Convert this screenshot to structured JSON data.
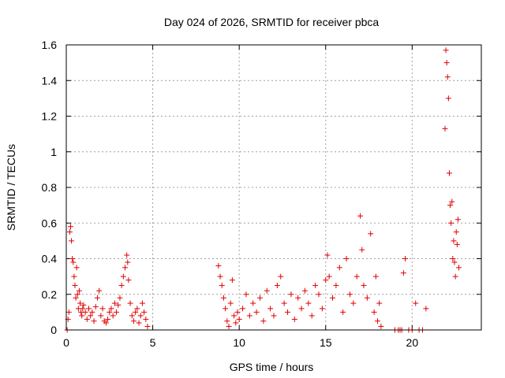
{
  "chart_data": {
    "type": "scatter",
    "title": "Day 024 of 2026, SRMTID for receiver pbca",
    "xlabel": "GPS time / hours",
    "ylabel": "SRMTID / TECUs",
    "xlim": [
      0,
      24
    ],
    "ylim": [
      0,
      1.6
    ],
    "xticks": [
      0,
      5,
      10,
      15,
      20
    ],
    "xtick_labels": [
      "0",
      "5",
      "10",
      "15",
      "20"
    ],
    "yticks": [
      0,
      0.2,
      0.4,
      0.6,
      0.8,
      1,
      1.2,
      1.4,
      1.6
    ],
    "ytick_labels": [
      "0",
      "0.2",
      "0.4",
      "0.6",
      "0.8",
      "1",
      "1.2",
      "1.4",
      "1.6"
    ],
    "grid": true,
    "marker": "+",
    "color": "#e00000",
    "series": [
      {
        "name": "SRMTID",
        "x": [
          0.05,
          0.1,
          0.15,
          0.2,
          0.25,
          0.3,
          0.35,
          0.4,
          0.45,
          0.5,
          0.55,
          0.6,
          0.65,
          0.7,
          0.75,
          0.8,
          0.85,
          0.9,
          0.95,
          1.0,
          1.1,
          1.2,
          1.3,
          1.4,
          1.5,
          1.6,
          1.7,
          1.8,
          1.9,
          2.0,
          2.1,
          2.2,
          2.3,
          2.4,
          2.5,
          2.6,
          2.7,
          2.8,
          2.9,
          3.0,
          3.1,
          3.2,
          3.3,
          3.4,
          3.5,
          3.55,
          3.6,
          3.7,
          3.8,
          3.9,
          4.0,
          4.1,
          4.2,
          4.3,
          4.4,
          4.5,
          4.6,
          4.7,
          8.8,
          8.9,
          9.0,
          9.1,
          9.2,
          9.3,
          9.4,
          9.5,
          9.6,
          9.7,
          9.8,
          9.9,
          10.0,
          10.2,
          10.4,
          10.6,
          10.8,
          11.0,
          11.2,
          11.4,
          11.6,
          11.8,
          12.0,
          12.2,
          12.4,
          12.6,
          12.8,
          13.0,
          13.2,
          13.4,
          13.6,
          13.8,
          14.0,
          14.2,
          14.4,
          14.6,
          14.8,
          15.0,
          15.1,
          15.2,
          15.4,
          15.6,
          15.8,
          16.0,
          16.2,
          16.4,
          16.6,
          16.8,
          17.0,
          17.1,
          17.2,
          17.4,
          17.6,
          17.8,
          17.9,
          18.0,
          18.1,
          18.2,
          19.0,
          19.2,
          19.3,
          19.4,
          19.5,
          19.6,
          19.8,
          20.0,
          20.2,
          20.4,
          20.6,
          20.8,
          21.9,
          21.95,
          22.0,
          22.05,
          22.1,
          22.15,
          22.2,
          22.25,
          22.3,
          22.35,
          22.4,
          22.45,
          22.5,
          22.55,
          22.6,
          22.65,
          22.7
        ],
        "y": [
          0.0,
          0.06,
          0.1,
          0.55,
          0.58,
          0.5,
          0.4,
          0.38,
          0.3,
          0.25,
          0.18,
          0.35,
          0.2,
          0.12,
          0.22,
          0.15,
          0.1,
          0.08,
          0.12,
          0.14,
          0.1,
          0.06,
          0.12,
          0.08,
          0.1,
          0.05,
          0.13,
          0.18,
          0.22,
          0.08,
          0.12,
          0.05,
          0.04,
          0.06,
          0.1,
          0.12,
          0.08,
          0.15,
          0.1,
          0.14,
          0.18,
          0.25,
          0.3,
          0.35,
          0.42,
          0.38,
          0.28,
          0.15,
          0.08,
          0.05,
          0.1,
          0.12,
          0.04,
          0.08,
          0.15,
          0.1,
          0.06,
          0.02,
          0.36,
          0.3,
          0.25,
          0.18,
          0.12,
          0.05,
          0.02,
          0.15,
          0.28,
          0.08,
          0.04,
          0.1,
          0.06,
          0.12,
          0.2,
          0.08,
          0.15,
          0.1,
          0.18,
          0.05,
          0.22,
          0.12,
          0.08,
          0.25,
          0.3,
          0.15,
          0.1,
          0.2,
          0.06,
          0.18,
          0.12,
          0.22,
          0.15,
          0.08,
          0.25,
          0.2,
          0.12,
          0.28,
          0.42,
          0.3,
          0.18,
          0.25,
          0.35,
          0.1,
          0.4,
          0.2,
          0.15,
          0.3,
          0.64,
          0.45,
          0.25,
          0.18,
          0.54,
          0.1,
          0.3,
          0.05,
          0.15,
          0.02,
          0.0,
          0.0,
          0.0,
          0.0,
          0.32,
          0.4,
          0.0,
          0.0,
          0.15,
          0.0,
          0.0,
          0.12,
          1.13,
          1.57,
          1.5,
          1.42,
          1.3,
          0.88,
          0.7,
          0.6,
          0.72,
          0.4,
          0.5,
          0.38,
          0.3,
          0.55,
          0.48,
          0.62,
          0.35
        ]
      }
    ]
  }
}
